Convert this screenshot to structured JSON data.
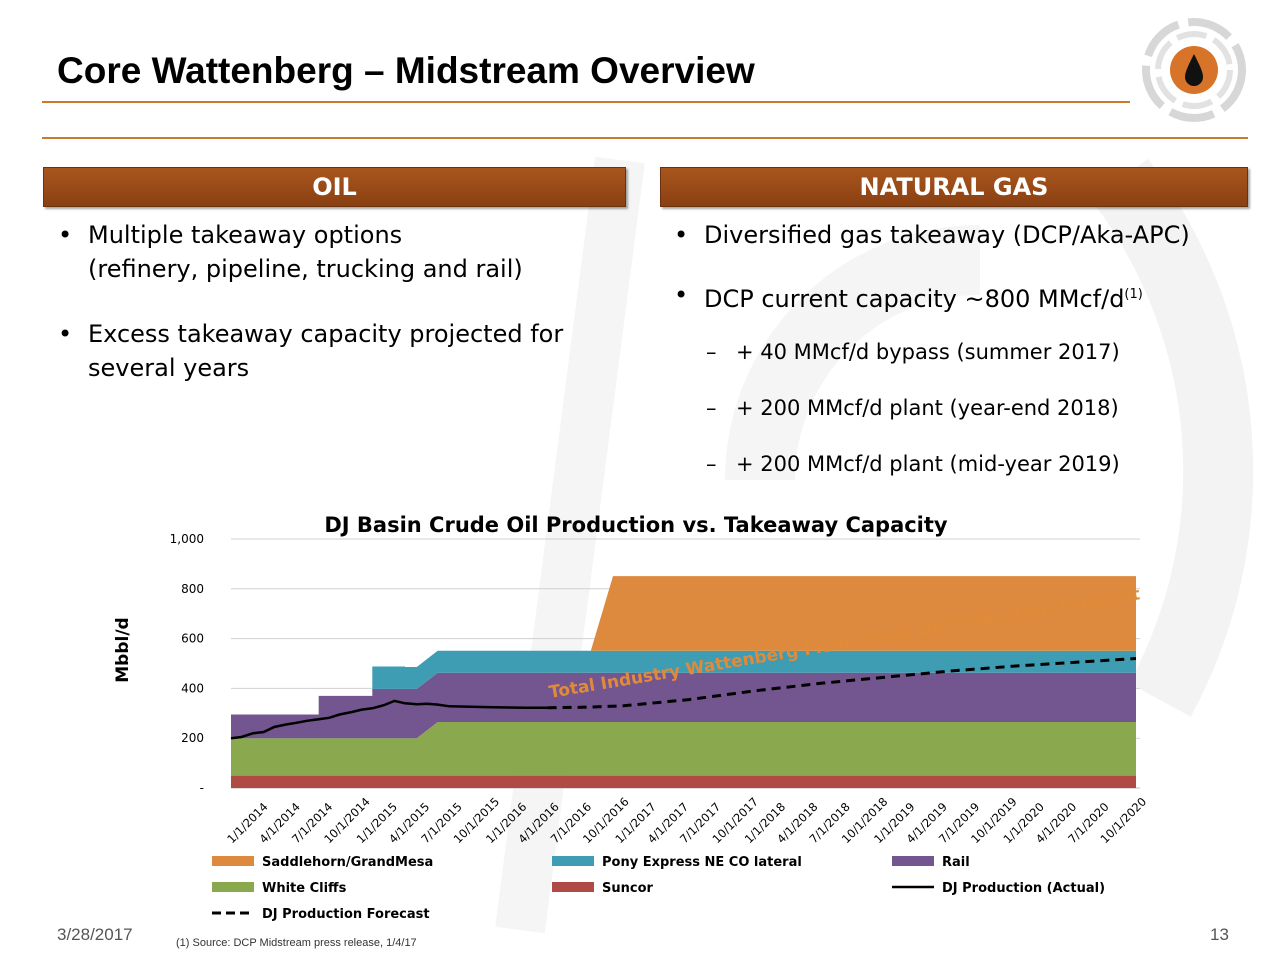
{
  "slide": {
    "title": "Core Wattenberg – Midstream Overview",
    "date": "3/28/2017",
    "page_number": "13",
    "footnote": "(1) Source: DCP Midstream press release, 1/4/17"
  },
  "oil": {
    "header": "OIL",
    "bullets": [
      {
        "line1": "Multiple takeaway options",
        "line2": "(refinery, pipeline, trucking and rail)"
      },
      {
        "line1": "Excess takeaway capacity projected for",
        "line2": "several years"
      }
    ]
  },
  "gas": {
    "header": "NATURAL GAS",
    "bullets": [
      {
        "text": "Diversified gas takeaway (DCP/Aka-APC)"
      },
      {
        "text": "DCP current capacity ~800 MMcf/d",
        "sup": "(1)"
      }
    ],
    "subs": [
      "+ 40 MMcf/d bypass (summer 2017)",
      "+ 200 MMcf/d plant (year-end 2018)",
      "+ 200 MMcf/d plant (mid-year 2019)"
    ]
  },
  "colors": {
    "accent": "#c97a2c",
    "header_bar": "#9a4a17",
    "saddlehorn": "#dd8a3e",
    "pony": "#3e9db3",
    "rail": "#73558f",
    "white_cliffs": "#8aa94f",
    "suncor": "#b04a45"
  },
  "chart_data": {
    "type": "area",
    "title": "DJ Basin Crude Oil Production vs. Takeaway Capacity",
    "ylabel": "Mbbl/d",
    "xlabel": "",
    "ylim": [
      0,
      1000
    ],
    "yticks": [
      "1,000",
      "800",
      "600",
      "400",
      "200",
      "-"
    ],
    "ytick_values": [
      1000,
      800,
      600,
      400,
      200,
      0
    ],
    "categories": [
      "1/1/2014",
      "4/1/2014",
      "7/1/2014",
      "10/1/2014",
      "1/1/2015",
      "4/1/2015",
      "7/1/2015",
      "10/1/2015",
      "1/1/2016",
      "4/1/2016",
      "7/1/2016",
      "10/1/2016",
      "1/1/2017",
      "4/1/2017",
      "7/1/2017",
      "10/1/2017",
      "1/1/2018",
      "4/1/2018",
      "7/1/2018",
      "10/1/2018",
      "1/1/2019",
      "4/1/2019",
      "7/1/2019",
      "10/1/2019",
      "1/1/2020",
      "4/1/2020",
      "7/1/2020",
      "10/1/2020"
    ],
    "annotation": "Total Industry Wattenberg Field Crude Oil Production Forecast",
    "x_start": 2014.0,
    "x_end": 2020.917,
    "series": [
      {
        "name": "Suncor",
        "kind": "stack",
        "points": [
          [
            2014.0,
            50
          ],
          [
            2020.917,
            50
          ]
        ]
      },
      {
        "name": "White Cliffs",
        "kind": "stack",
        "points": [
          [
            2014.0,
            150
          ],
          [
            2015.42,
            150
          ],
          [
            2015.58,
            215
          ],
          [
            2020.917,
            215
          ]
        ]
      },
      {
        "name": "Rail",
        "kind": "stack",
        "points": [
          [
            2014.0,
            95
          ],
          [
            2014.67,
            95
          ],
          [
            2014.67,
            170
          ],
          [
            2015.08,
            170
          ],
          [
            2015.08,
            198
          ],
          [
            2015.42,
            198
          ],
          [
            2015.58,
            198
          ],
          [
            2020.917,
            198
          ]
        ]
      },
      {
        "name": "Pony Express NE CO lateral",
        "kind": "stack",
        "points": [
          [
            2014.0,
            0
          ],
          [
            2015.08,
            0
          ],
          [
            2015.08,
            90
          ],
          [
            2015.33,
            90
          ],
          [
            2015.33,
            88
          ],
          [
            2015.42,
            88
          ],
          [
            2015.58,
            88
          ],
          [
            2020.917,
            88
          ]
        ]
      },
      {
        "name": "Saddlehorn/GrandMesa",
        "kind": "stack",
        "points": [
          [
            2014.0,
            0
          ],
          [
            2016.75,
            0
          ],
          [
            2016.92,
            300
          ],
          [
            2020.917,
            300
          ]
        ]
      },
      {
        "name": "DJ Production (Actual)",
        "kind": "line",
        "points": [
          [
            2014.0,
            200
          ],
          [
            2014.08,
            205
          ],
          [
            2014.17,
            220
          ],
          [
            2014.25,
            225
          ],
          [
            2014.33,
            245
          ],
          [
            2014.42,
            255
          ],
          [
            2014.5,
            262
          ],
          [
            2014.58,
            270
          ],
          [
            2014.67,
            276
          ],
          [
            2014.75,
            282
          ],
          [
            2014.83,
            295
          ],
          [
            2014.92,
            305
          ],
          [
            2015.0,
            315
          ],
          [
            2015.08,
            320
          ],
          [
            2015.17,
            333
          ],
          [
            2015.25,
            350
          ],
          [
            2015.33,
            340
          ],
          [
            2015.42,
            336
          ],
          [
            2015.5,
            338
          ],
          [
            2015.58,
            335
          ],
          [
            2015.67,
            328
          ],
          [
            2015.83,
            326
          ],
          [
            2016.0,
            324
          ],
          [
            2016.25,
            322
          ],
          [
            2016.42,
            322
          ]
        ]
      },
      {
        "name": "DJ Production Forecast",
        "kind": "dashed",
        "points": [
          [
            2016.42,
            322
          ],
          [
            2016.75,
            325
          ],
          [
            2017.0,
            330
          ],
          [
            2017.5,
            355
          ],
          [
            2018.0,
            390
          ],
          [
            2018.5,
            420
          ],
          [
            2019.0,
            445
          ],
          [
            2019.5,
            470
          ],
          [
            2020.0,
            490
          ],
          [
            2020.917,
            520
          ]
        ]
      }
    ],
    "legend": [
      {
        "name": "Saddlehorn/GrandMesa",
        "key": "saddlehorn",
        "type": "swatch"
      },
      {
        "name": "Pony Express NE CO lateral",
        "key": "pony",
        "type": "swatch"
      },
      {
        "name": "Rail",
        "key": "rail",
        "type": "swatch"
      },
      {
        "name": "White Cliffs",
        "key": "white_cliffs",
        "type": "swatch"
      },
      {
        "name": "Suncor",
        "key": "suncor",
        "type": "swatch"
      },
      {
        "name": "DJ Production (Actual)",
        "key": "actual",
        "type": "line"
      },
      {
        "name": "DJ Production Forecast",
        "key": "forecast",
        "type": "dashed"
      }
    ]
  }
}
